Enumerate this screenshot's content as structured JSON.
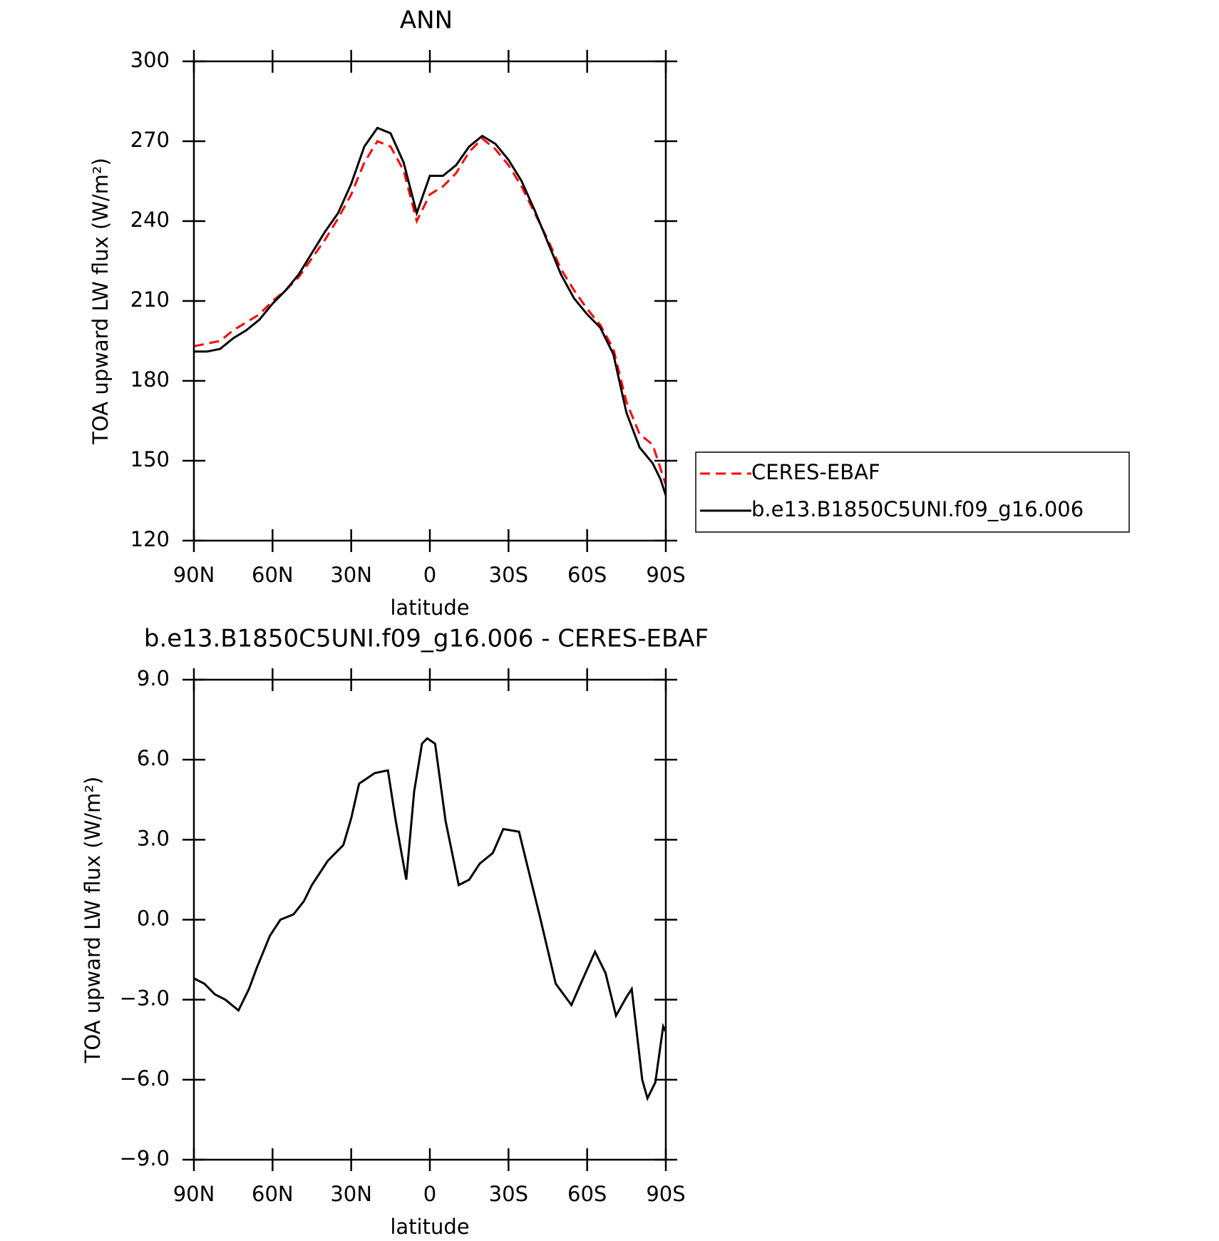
{
  "chart_data": [
    {
      "type": "line",
      "title": "ANN",
      "x_label": "latitude",
      "y_label": "TOA upward LW flux (W/m²)",
      "x": [
        90,
        85,
        80,
        75,
        70,
        65,
        60,
        55,
        50,
        45,
        40,
        35,
        30,
        25,
        20,
        15,
        10,
        5,
        0,
        -5,
        -10,
        -15,
        -20,
        -25,
        -30,
        -35,
        -40,
        -45,
        -50,
        -55,
        -60,
        -65,
        -70,
        -75,
        -80,
        -85,
        -88,
        -90
      ],
      "series": [
        {
          "name": "CERES-EBAF",
          "color": "#ff0000",
          "style": "dashed",
          "values": [
            193,
            194,
            195,
            199,
            202,
            205,
            210,
            214,
            219,
            226,
            233,
            241,
            250,
            262,
            270,
            268,
            259,
            240,
            250,
            253,
            258,
            266,
            271,
            267,
            261,
            253,
            243,
            233,
            222,
            214,
            207,
            201,
            192,
            172,
            160,
            156,
            147,
            141
          ]
        },
        {
          "name": "b.e13.B1850C5UNI.f09_g16.006",
          "color": "#000000",
          "style": "solid",
          "values": [
            191,
            191,
            192,
            196,
            199,
            203,
            209,
            214,
            220,
            228,
            236,
            243,
            254,
            268,
            275,
            273,
            262,
            243,
            257,
            257,
            261,
            268,
            272,
            269,
            263,
            255,
            244,
            232,
            220,
            211,
            205,
            200,
            190,
            168,
            155,
            149,
            143,
            137
          ]
        }
      ],
      "xlim": [
        90,
        -90
      ],
      "xticks": [
        {
          "value": 90,
          "label": "90N"
        },
        {
          "value": 60,
          "label": "60N"
        },
        {
          "value": 30,
          "label": "30N"
        },
        0,
        {
          "value": -30,
          "label": "30S"
        },
        {
          "value": -60,
          "label": "60S"
        },
        {
          "value": -90,
          "label": "90S"
        }
      ],
      "ylim": [
        120,
        300
      ],
      "yticks": [
        120,
        150,
        180,
        210,
        240,
        270,
        300
      ],
      "legend": "outside right"
    },
    {
      "type": "line",
      "title": "b.e13.B1850C5UNI.f09_g16.006 - CERES-EBAF",
      "x_label": "latitude",
      "y_label": "TOA upward LW flux (W/m²)",
      "x": [
        90,
        86,
        82,
        78,
        73,
        69,
        66,
        61,
        57,
        52,
        48,
        45,
        39,
        33,
        30,
        27,
        21,
        16,
        13,
        9,
        6,
        3,
        1,
        -2,
        -6,
        -11,
        -15,
        -19,
        -24,
        -28,
        -34,
        -42,
        -48,
        -54,
        -58,
        -63,
        -67,
        -71,
        -75,
        -77,
        -81,
        -83,
        -86,
        -89,
        -90
      ],
      "values": [
        -2.2,
        -2.4,
        -2.8,
        -3.0,
        -3.4,
        -2.6,
        -1.8,
        -0.6,
        0.0,
        0.2,
        0.7,
        1.3,
        2.2,
        2.8,
        3.8,
        5.1,
        5.5,
        5.6,
        3.7,
        1.5,
        4.8,
        6.6,
        6.8,
        6.6,
        3.7,
        1.3,
        1.5,
        2.1,
        2.5,
        3.4,
        3.3,
        0.1,
        -2.4,
        -3.2,
        -2.3,
        -1.2,
        -2.0,
        -3.6,
        -2.9,
        -2.6,
        -6.0,
        -6.7,
        -6.1,
        -4.0,
        -4.2
      ],
      "color": "#000000",
      "xlim": [
        90,
        -90
      ],
      "xticks": [
        {
          "value": 90,
          "label": "90N"
        },
        {
          "value": 60,
          "label": "60N"
        },
        {
          "value": 30,
          "label": "30N"
        },
        0,
        {
          "value": -30,
          "label": "30S"
        },
        {
          "value": -60,
          "label": "60S"
        },
        {
          "value": -90,
          "label": "90S"
        }
      ],
      "ylim": [
        -9,
        9
      ],
      "yticks": [
        {
          "value": -9,
          "label": "−9.0"
        },
        {
          "value": -6,
          "label": "−6.0"
        },
        {
          "value": -3,
          "label": "−3.0"
        },
        {
          "value": 0,
          "label": "0.0"
        },
        {
          "value": 3,
          "label": "3.0"
        },
        {
          "value": 6,
          "label": "6.0"
        },
        {
          "value": 9,
          "label": "9.0"
        }
      ]
    }
  ]
}
